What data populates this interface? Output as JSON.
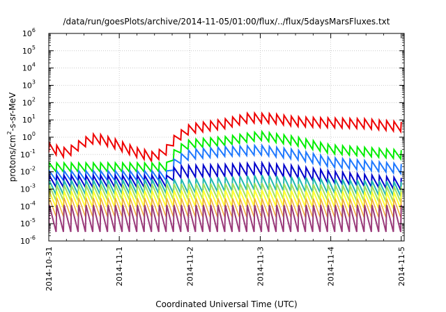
{
  "chart_data": {
    "type": "line",
    "title": "/data/run/goesPlots/archive/2014-11-05/01:00/flux/../flux/5daysMarsFluxes.txt",
    "xlabel": "Coordinated Universal Time (UTC)",
    "ylabel": "protons/cm²-s-sr-MeV",
    "ylabel_base": "protons/cm",
    "ylabel_sup": "2",
    "ylabel_rest": "-s-sr-MeV",
    "yscale": "log",
    "ylim": [
      1e-06,
      1000000.0
    ],
    "xlim": [
      "2014-10-31T00:00",
      "2014-11-05T01:00"
    ],
    "grid": true,
    "x_ticks": [
      "2014-10-31",
      "2014-11-1",
      "2014-11-2",
      "2014-11-3",
      "2014-11-4",
      "2014-11-5"
    ],
    "y_ticks": [
      {
        "base": "10",
        "exp": "-6",
        "value": 1e-06
      },
      {
        "base": "10",
        "exp": "-5",
        "value": 1e-05
      },
      {
        "base": "10",
        "exp": "-4",
        "value": 0.0001
      },
      {
        "base": "10",
        "exp": "-3",
        "value": 0.001
      },
      {
        "base": "10",
        "exp": "-2",
        "value": 0.01
      },
      {
        "base": "10",
        "exp": "-1",
        "value": 0.1
      },
      {
        "base": "10",
        "exp": "0",
        "value": 1
      },
      {
        "base": "10",
        "exp": "1",
        "value": 10.0
      },
      {
        "base": "10",
        "exp": "2",
        "value": 100.0
      },
      {
        "base": "10",
        "exp": "3",
        "value": 1000.0
      },
      {
        "base": "10",
        "exp": "4",
        "value": 10000.0
      },
      {
        "base": "10",
        "exp": "5",
        "value": 100000.0
      },
      {
        "base": "10",
        "exp": "6",
        "value": 1000000.0
      }
    ],
    "sawtooth_period_days": 0.104,
    "series": [
      {
        "color": "#ee0000",
        "width": 2,
        "envelope": [
          [
            "2014-10-31T00:00",
            0.25
          ],
          [
            "2014-10-31T06:00",
            0.12
          ],
          [
            "2014-10-31T12:00",
            0.5
          ],
          [
            "2014-10-31T16:00",
            0.9
          ],
          [
            "2014-10-31T22:00",
            0.45
          ],
          [
            "2014-11-01T06:00",
            0.13
          ],
          [
            "2014-11-01T12:00",
            0.07
          ],
          [
            "2014-11-01T16:00",
            0.18
          ],
          [
            "2014-11-01T19:00",
            0.8
          ],
          [
            "2014-11-02T00:00",
            3
          ],
          [
            "2014-11-02T12:00",
            6
          ],
          [
            "2014-11-02T20:00",
            13
          ],
          [
            "2014-11-03T04:00",
            12
          ],
          [
            "2014-11-03T12:00",
            8
          ],
          [
            "2014-11-03T20:00",
            7
          ],
          [
            "2014-11-04T12:00",
            6
          ],
          [
            "2014-11-05T00:00",
            4
          ]
        ],
        "amp_factor": 1.9
      },
      {
        "color": "#00ee00",
        "width": 2,
        "envelope": [
          [
            "2014-10-31T00:00",
            0.018
          ],
          [
            "2014-11-01T12:00",
            0.018
          ],
          [
            "2014-11-01T17:00",
            0.02
          ],
          [
            "2014-11-01T19:00",
            0.15
          ],
          [
            "2014-11-02T00:00",
            0.4
          ],
          [
            "2014-11-02T12:00",
            0.6
          ],
          [
            "2014-11-03T00:00",
            1.2
          ],
          [
            "2014-11-03T12:00",
            0.6
          ],
          [
            "2014-11-04T00:00",
            0.2
          ],
          [
            "2014-11-05T00:00",
            0.1
          ]
        ],
        "amp_factor": 1.8
      },
      {
        "color": "#1e78ff",
        "width": 2,
        "envelope": [
          [
            "2014-10-31T00:00",
            0.006
          ],
          [
            "2014-11-01T17:00",
            0.006
          ],
          [
            "2014-11-01T19:00",
            0.04
          ],
          [
            "2014-11-02T00:00",
            0.1
          ],
          [
            "2014-11-02T12:00",
            0.15
          ],
          [
            "2014-11-03T00:00",
            0.18
          ],
          [
            "2014-11-03T12:00",
            0.1
          ],
          [
            "2014-11-04T00:00",
            0.035
          ],
          [
            "2014-11-05T00:00",
            0.015
          ]
        ],
        "amp_factor": 1.9
      },
      {
        "color": "#0000cc",
        "width": 2,
        "envelope": [
          [
            "2014-10-31T00:00",
            0.0028
          ],
          [
            "2014-11-01T17:00",
            0.0028
          ],
          [
            "2014-11-01T19:00",
            0.01
          ],
          [
            "2014-11-02T12:00",
            0.012
          ],
          [
            "2014-11-03T00:00",
            0.015
          ],
          [
            "2014-11-03T12:00",
            0.01
          ],
          [
            "2014-11-04T00:00",
            0.005
          ],
          [
            "2014-11-05T00:00",
            0.002
          ]
        ],
        "amp_factor": 2.2
      },
      {
        "color": "#20b8b0",
        "width": 2,
        "envelope": [
          [
            "2014-10-31T00:00",
            0.0012
          ],
          [
            "2014-11-02T00:00",
            0.0015
          ],
          [
            "2014-11-03T00:00",
            0.0025
          ],
          [
            "2014-11-04T00:00",
            0.0015
          ],
          [
            "2014-11-05T00:00",
            0.001
          ]
        ],
        "amp_factor": 2.6
      },
      {
        "color": "#a0e060",
        "width": 2,
        "envelope": [
          [
            "2014-10-31T00:00",
            0.0006
          ],
          [
            "2014-11-03T00:00",
            0.0008
          ],
          [
            "2014-11-05T00:00",
            0.0005
          ]
        ],
        "amp_factor": 2.8
      },
      {
        "color": "#ffff33",
        "width": 2,
        "envelope": [
          [
            "2014-10-31T00:00",
            0.00025
          ],
          [
            "2014-11-03T00:00",
            0.0003
          ],
          [
            "2014-11-05T00:00",
            0.00022
          ]
        ],
        "amp_factor": 3.0
      },
      {
        "color": "#eeaa33",
        "width": 1.5,
        "envelope": [
          [
            "2014-10-31T00:00",
            9e-05
          ],
          [
            "2014-11-05T00:00",
            8e-05
          ]
        ],
        "amp_factor": 3.5
      },
      {
        "color": "#9a3a7a",
        "width": 2,
        "envelope": [
          [
            "2014-10-31T00:00",
            2e-05
          ],
          [
            "2014-11-05T00:00",
            2e-05
          ]
        ],
        "amp_factor": 6.0
      }
    ]
  }
}
